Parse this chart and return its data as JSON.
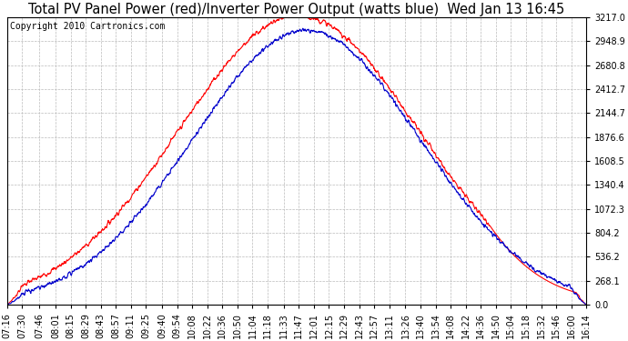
{
  "title": "Total PV Panel Power (red)/Inverter Power Output (watts blue)  Wed Jan 13 16:45",
  "copyright_text": "Copyright 2010 Cartronics.com",
  "y_max": 3217.0,
  "y_ticks": [
    0.0,
    268.1,
    536.2,
    804.2,
    1072.3,
    1340.4,
    1608.5,
    1876.6,
    2144.7,
    2412.7,
    2680.8,
    2948.9,
    3217.0
  ],
  "y_tick_labels": [
    "0.0",
    "268.1",
    "536.2",
    "804.2",
    "1072.3",
    "1340.4",
    "1608.5",
    "1876.6",
    "2144.7",
    "2412.7",
    "2680.8",
    "2948.9",
    "3217.0"
  ],
  "x_tick_labels": [
    "07:16",
    "07:30",
    "07:46",
    "08:01",
    "08:15",
    "08:29",
    "08:43",
    "08:57",
    "09:11",
    "09:25",
    "09:40",
    "09:54",
    "10:08",
    "10:22",
    "10:36",
    "10:50",
    "11:04",
    "11:18",
    "11:33",
    "11:47",
    "12:01",
    "12:15",
    "12:29",
    "12:43",
    "12:57",
    "13:11",
    "13:26",
    "13:40",
    "13:54",
    "14:08",
    "14:22",
    "14:36",
    "14:50",
    "15:04",
    "15:18",
    "15:32",
    "15:46",
    "16:00",
    "16:14"
  ],
  "background_color": "#ffffff",
  "plot_bg_color": "#ffffff",
  "grid_color": "#bbbbbb",
  "red_color": "#ff0000",
  "blue_color": "#0000cc",
  "title_fontsize": 10.5,
  "tick_fontsize": 7,
  "copyright_fontsize": 7
}
